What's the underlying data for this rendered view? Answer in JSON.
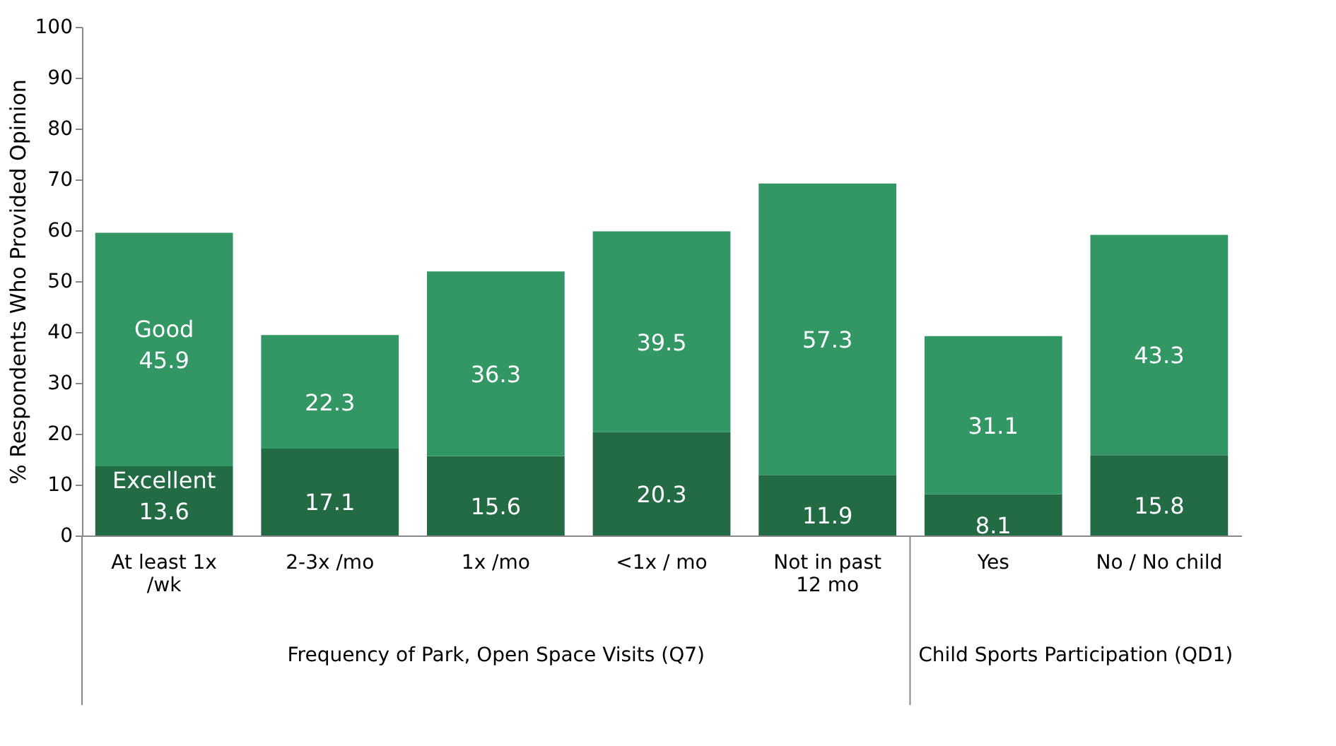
{
  "chart_data": {
    "type": "bar",
    "stacked": true,
    "ylabel": "% Respondents Who Provided Opinion",
    "categories": [
      "At least 1x\n/wk",
      "2-3x /mo",
      "1x /mo",
      "<1x / mo",
      "Not in past\n12 mo",
      "Yes",
      "No / No child"
    ],
    "series": [
      {
        "name": "Excellent",
        "color": "#236b45",
        "values": [
          13.6,
          17.1,
          15.6,
          20.3,
          11.9,
          8.1,
          15.8
        ]
      },
      {
        "name": "Good",
        "color": "#339665",
        "values": [
          45.9,
          22.3,
          36.3,
          39.5,
          57.3,
          31.1,
          43.3
        ]
      }
    ],
    "ylim": [
      0,
      100
    ],
    "yticks": [
      0,
      10,
      20,
      30,
      40,
      50,
      60,
      70,
      80,
      90,
      100
    ],
    "grid": false,
    "legend": false,
    "data_labels": true,
    "annotations": [
      "Frequency of Park, Open Space Visits (Q7)",
      "Child Sports Participation (QD1)"
    ]
  }
}
